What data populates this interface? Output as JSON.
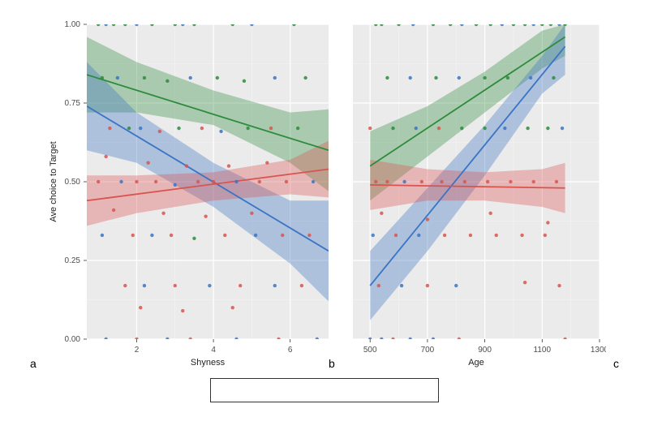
{
  "colors": {
    "series_a": "#2e8b3d",
    "series_b": "#3a74c4",
    "series_c": "#d9534f",
    "plot_bg": "#ebebeb",
    "grid": "#ffffff",
    "grid_minor": "#f5f5f5"
  },
  "ylabel": "Ave choice to Target",
  "panels": {
    "left": {
      "label": "a",
      "xlabel": "Shyness",
      "xlim": [
        0.7,
        7
      ],
      "ylim": [
        0,
        1
      ],
      "xticks": [
        2,
        4,
        6
      ],
      "yticks": [
        0.0,
        0.25,
        0.5,
        0.75,
        1.0
      ],
      "series": [
        {
          "color_key": "series_a",
          "line": [
            [
              0.7,
              0.84
            ],
            [
              7,
              0.6
            ]
          ],
          "ribbon_upper": [
            [
              0.7,
              0.96
            ],
            [
              2,
              0.88
            ],
            [
              4,
              0.79
            ],
            [
              6,
              0.72
            ],
            [
              7,
              0.73
            ]
          ],
          "ribbon_lower": [
            [
              0.7,
              0.72
            ],
            [
              2,
              0.72
            ],
            [
              4,
              0.68
            ],
            [
              6,
              0.56
            ],
            [
              7,
              0.47
            ]
          ]
        },
        {
          "color_key": "series_b",
          "line": [
            [
              0.7,
              0.74
            ],
            [
              7,
              0.28
            ]
          ],
          "ribbon_upper": [
            [
              0.7,
              0.88
            ],
            [
              2,
              0.72
            ],
            [
              4,
              0.56
            ],
            [
              6,
              0.44
            ],
            [
              7,
              0.44
            ]
          ],
          "ribbon_lower": [
            [
              0.7,
              0.6
            ],
            [
              2,
              0.56
            ],
            [
              4,
              0.42
            ],
            [
              6,
              0.24
            ],
            [
              7,
              0.12
            ]
          ]
        },
        {
          "color_key": "series_c",
          "line": [
            [
              0.7,
              0.44
            ],
            [
              7,
              0.54
            ]
          ],
          "ribbon_upper": [
            [
              0.7,
              0.52
            ],
            [
              2,
              0.52
            ],
            [
              4,
              0.53
            ],
            [
              6,
              0.57
            ],
            [
              7,
              0.63
            ]
          ],
          "ribbon_lower": [
            [
              0.7,
              0.36
            ],
            [
              2,
              0.4
            ],
            [
              4,
              0.44
            ],
            [
              6,
              0.46
            ],
            [
              7,
              0.45
            ]
          ]
        }
      ],
      "points": [
        {
          "x": 1.0,
          "y": 1.0,
          "c": "series_a"
        },
        {
          "x": 1.2,
          "y": 1.0,
          "c": "series_b"
        },
        {
          "x": 1.4,
          "y": 1.0,
          "c": "series_a"
        },
        {
          "x": 1.7,
          "y": 1.0,
          "c": "series_a"
        },
        {
          "x": 2.0,
          "y": 1.0,
          "c": "series_b"
        },
        {
          "x": 2.4,
          "y": 1.0,
          "c": "series_a"
        },
        {
          "x": 3.0,
          "y": 1.0,
          "c": "series_a"
        },
        {
          "x": 3.2,
          "y": 1.0,
          "c": "series_b"
        },
        {
          "x": 3.5,
          "y": 1.0,
          "c": "series_a"
        },
        {
          "x": 4.5,
          "y": 1.0,
          "c": "series_a"
        },
        {
          "x": 5.0,
          "y": 1.0,
          "c": "series_b"
        },
        {
          "x": 6.1,
          "y": 1.0,
          "c": "series_a"
        },
        {
          "x": 1.1,
          "y": 0.83,
          "c": "series_a"
        },
        {
          "x": 1.5,
          "y": 0.83,
          "c": "series_b"
        },
        {
          "x": 2.2,
          "y": 0.83,
          "c": "series_a"
        },
        {
          "x": 2.8,
          "y": 0.82,
          "c": "series_a"
        },
        {
          "x": 3.4,
          "y": 0.83,
          "c": "series_b"
        },
        {
          "x": 4.1,
          "y": 0.83,
          "c": "series_a"
        },
        {
          "x": 4.8,
          "y": 0.82,
          "c": "series_a"
        },
        {
          "x": 5.6,
          "y": 0.83,
          "c": "series_b"
        },
        {
          "x": 6.4,
          "y": 0.83,
          "c": "series_a"
        },
        {
          "x": 1.3,
          "y": 0.67,
          "c": "series_c"
        },
        {
          "x": 1.8,
          "y": 0.67,
          "c": "series_a"
        },
        {
          "x": 2.1,
          "y": 0.67,
          "c": "series_b"
        },
        {
          "x": 2.6,
          "y": 0.66,
          "c": "series_c"
        },
        {
          "x": 3.1,
          "y": 0.67,
          "c": "series_a"
        },
        {
          "x": 3.7,
          "y": 0.67,
          "c": "series_c"
        },
        {
          "x": 4.2,
          "y": 0.66,
          "c": "series_b"
        },
        {
          "x": 4.9,
          "y": 0.67,
          "c": "series_a"
        },
        {
          "x": 5.5,
          "y": 0.67,
          "c": "series_c"
        },
        {
          "x": 6.2,
          "y": 0.67,
          "c": "series_a"
        },
        {
          "x": 1.2,
          "y": 0.58,
          "c": "series_c"
        },
        {
          "x": 2.3,
          "y": 0.56,
          "c": "series_c"
        },
        {
          "x": 3.3,
          "y": 0.55,
          "c": "series_c"
        },
        {
          "x": 4.4,
          "y": 0.55,
          "c": "series_c"
        },
        {
          "x": 5.4,
          "y": 0.56,
          "c": "series_c"
        },
        {
          "x": 1.0,
          "y": 0.5,
          "c": "series_c"
        },
        {
          "x": 1.6,
          "y": 0.5,
          "c": "series_b"
        },
        {
          "x": 2.0,
          "y": 0.5,
          "c": "series_c"
        },
        {
          "x": 2.5,
          "y": 0.5,
          "c": "series_c"
        },
        {
          "x": 3.0,
          "y": 0.49,
          "c": "series_b"
        },
        {
          "x": 3.6,
          "y": 0.5,
          "c": "series_c"
        },
        {
          "x": 4.0,
          "y": 0.5,
          "c": "series_c"
        },
        {
          "x": 4.6,
          "y": 0.5,
          "c": "series_b"
        },
        {
          "x": 5.2,
          "y": 0.5,
          "c": "series_c"
        },
        {
          "x": 5.9,
          "y": 0.5,
          "c": "series_c"
        },
        {
          "x": 6.6,
          "y": 0.5,
          "c": "series_b"
        },
        {
          "x": 1.4,
          "y": 0.41,
          "c": "series_c"
        },
        {
          "x": 2.7,
          "y": 0.4,
          "c": "series_c"
        },
        {
          "x": 3.8,
          "y": 0.39,
          "c": "series_c"
        },
        {
          "x": 5.0,
          "y": 0.4,
          "c": "series_c"
        },
        {
          "x": 1.1,
          "y": 0.33,
          "c": "series_b"
        },
        {
          "x": 1.9,
          "y": 0.33,
          "c": "series_c"
        },
        {
          "x": 2.4,
          "y": 0.33,
          "c": "series_b"
        },
        {
          "x": 2.9,
          "y": 0.33,
          "c": "series_c"
        },
        {
          "x": 3.5,
          "y": 0.32,
          "c": "series_a"
        },
        {
          "x": 4.3,
          "y": 0.33,
          "c": "series_c"
        },
        {
          "x": 5.1,
          "y": 0.33,
          "c": "series_b"
        },
        {
          "x": 5.8,
          "y": 0.33,
          "c": "series_c"
        },
        {
          "x": 6.5,
          "y": 0.33,
          "c": "series_c"
        },
        {
          "x": 1.7,
          "y": 0.17,
          "c": "series_c"
        },
        {
          "x": 2.2,
          "y": 0.17,
          "c": "series_b"
        },
        {
          "x": 3.0,
          "y": 0.17,
          "c": "series_c"
        },
        {
          "x": 3.9,
          "y": 0.17,
          "c": "series_b"
        },
        {
          "x": 4.7,
          "y": 0.17,
          "c": "series_c"
        },
        {
          "x": 5.6,
          "y": 0.17,
          "c": "series_b"
        },
        {
          "x": 6.3,
          "y": 0.17,
          "c": "series_c"
        },
        {
          "x": 2.1,
          "y": 0.1,
          "c": "series_c"
        },
        {
          "x": 3.2,
          "y": 0.09,
          "c": "series_c"
        },
        {
          "x": 4.5,
          "y": 0.1,
          "c": "series_c"
        },
        {
          "x": 1.2,
          "y": 0.0,
          "c": "series_b"
        },
        {
          "x": 2.0,
          "y": 0.0,
          "c": "series_c"
        },
        {
          "x": 2.8,
          "y": 0.0,
          "c": "series_b"
        },
        {
          "x": 3.4,
          "y": 0.0,
          "c": "series_c"
        },
        {
          "x": 4.6,
          "y": 0.0,
          "c": "series_b"
        },
        {
          "x": 5.7,
          "y": 0.0,
          "c": "series_c"
        },
        {
          "x": 6.7,
          "y": 0.0,
          "c": "series_b"
        }
      ]
    },
    "right": {
      "label": "b",
      "label_right": "c",
      "xlabel": "Age",
      "xlim": [
        440,
        1300
      ],
      "ylim": [
        0,
        1
      ],
      "xticks": [
        500,
        700,
        900,
        1100,
        1300
      ],
      "yticks": [
        0.0,
        0.25,
        0.5,
        0.75,
        1.0
      ],
      "series": [
        {
          "color_key": "series_a",
          "line": [
            [
              500,
              0.55
            ],
            [
              1180,
              0.96
            ]
          ],
          "ribbon_upper": [
            [
              500,
              0.66
            ],
            [
              700,
              0.74
            ],
            [
              900,
              0.85
            ],
            [
              1100,
              0.98
            ],
            [
              1180,
              1.0
            ]
          ],
          "ribbon_lower": [
            [
              500,
              0.44
            ],
            [
              700,
              0.58
            ],
            [
              900,
              0.72
            ],
            [
              1100,
              0.86
            ],
            [
              1180,
              0.9
            ]
          ]
        },
        {
          "color_key": "series_b",
          "line": [
            [
              500,
              0.17
            ],
            [
              1180,
              0.93
            ]
          ],
          "ribbon_upper": [
            [
              500,
              0.28
            ],
            [
              700,
              0.48
            ],
            [
              900,
              0.68
            ],
            [
              1100,
              0.9
            ],
            [
              1180,
              1.0
            ]
          ],
          "ribbon_lower": [
            [
              500,
              0.06
            ],
            [
              700,
              0.28
            ],
            [
              900,
              0.52
            ],
            [
              1100,
              0.78
            ],
            [
              1180,
              0.84
            ]
          ]
        },
        {
          "color_key": "series_c",
          "line": [
            [
              500,
              0.49
            ],
            [
              1180,
              0.48
            ]
          ],
          "ribbon_upper": [
            [
              500,
              0.57
            ],
            [
              700,
              0.54
            ],
            [
              900,
              0.53
            ],
            [
              1100,
              0.54
            ],
            [
              1180,
              0.56
            ]
          ],
          "ribbon_lower": [
            [
              500,
              0.41
            ],
            [
              700,
              0.44
            ],
            [
              900,
              0.44
            ],
            [
              1100,
              0.42
            ],
            [
              1180,
              0.4
            ]
          ]
        }
      ],
      "points": [
        {
          "x": 520,
          "y": 1.0,
          "c": "series_a"
        },
        {
          "x": 540,
          "y": 1.0,
          "c": "series_a"
        },
        {
          "x": 600,
          "y": 1.0,
          "c": "series_a"
        },
        {
          "x": 650,
          "y": 1.0,
          "c": "series_b"
        },
        {
          "x": 720,
          "y": 1.0,
          "c": "series_a"
        },
        {
          "x": 780,
          "y": 1.0,
          "c": "series_a"
        },
        {
          "x": 820,
          "y": 1.0,
          "c": "series_b"
        },
        {
          "x": 870,
          "y": 1.0,
          "c": "series_a"
        },
        {
          "x": 920,
          "y": 1.0,
          "c": "series_a"
        },
        {
          "x": 960,
          "y": 1.0,
          "c": "series_b"
        },
        {
          "x": 1000,
          "y": 1.0,
          "c": "series_a"
        },
        {
          "x": 1040,
          "y": 1.0,
          "c": "series_a"
        },
        {
          "x": 1070,
          "y": 1.0,
          "c": "series_b"
        },
        {
          "x": 1100,
          "y": 1.0,
          "c": "series_a"
        },
        {
          "x": 1130,
          "y": 1.0,
          "c": "series_a"
        },
        {
          "x": 1160,
          "y": 1.0,
          "c": "series_b"
        },
        {
          "x": 1180,
          "y": 1.0,
          "c": "series_a"
        },
        {
          "x": 560,
          "y": 0.83,
          "c": "series_a"
        },
        {
          "x": 640,
          "y": 0.83,
          "c": "series_b"
        },
        {
          "x": 730,
          "y": 0.83,
          "c": "series_a"
        },
        {
          "x": 810,
          "y": 0.83,
          "c": "series_b"
        },
        {
          "x": 900,
          "y": 0.83,
          "c": "series_a"
        },
        {
          "x": 980,
          "y": 0.83,
          "c": "series_a"
        },
        {
          "x": 1060,
          "y": 0.83,
          "c": "series_b"
        },
        {
          "x": 1140,
          "y": 0.83,
          "c": "series_a"
        },
        {
          "x": 500,
          "y": 0.67,
          "c": "series_c"
        },
        {
          "x": 580,
          "y": 0.67,
          "c": "series_a"
        },
        {
          "x": 660,
          "y": 0.67,
          "c": "series_b"
        },
        {
          "x": 740,
          "y": 0.67,
          "c": "series_c"
        },
        {
          "x": 820,
          "y": 0.67,
          "c": "series_a"
        },
        {
          "x": 900,
          "y": 0.67,
          "c": "series_a"
        },
        {
          "x": 970,
          "y": 0.67,
          "c": "series_b"
        },
        {
          "x": 1050,
          "y": 0.67,
          "c": "series_a"
        },
        {
          "x": 1120,
          "y": 0.67,
          "c": "series_a"
        },
        {
          "x": 1170,
          "y": 0.67,
          "c": "series_b"
        },
        {
          "x": 520,
          "y": 0.5,
          "c": "series_c"
        },
        {
          "x": 560,
          "y": 0.5,
          "c": "series_c"
        },
        {
          "x": 620,
          "y": 0.5,
          "c": "series_b"
        },
        {
          "x": 680,
          "y": 0.5,
          "c": "series_c"
        },
        {
          "x": 750,
          "y": 0.5,
          "c": "series_c"
        },
        {
          "x": 830,
          "y": 0.5,
          "c": "series_c"
        },
        {
          "x": 910,
          "y": 0.5,
          "c": "series_c"
        },
        {
          "x": 990,
          "y": 0.5,
          "c": "series_c"
        },
        {
          "x": 1070,
          "y": 0.5,
          "c": "series_c"
        },
        {
          "x": 1150,
          "y": 0.5,
          "c": "series_c"
        },
        {
          "x": 540,
          "y": 0.4,
          "c": "series_c"
        },
        {
          "x": 700,
          "y": 0.38,
          "c": "series_c"
        },
        {
          "x": 920,
          "y": 0.4,
          "c": "series_c"
        },
        {
          "x": 1120,
          "y": 0.37,
          "c": "series_c"
        },
        {
          "x": 510,
          "y": 0.33,
          "c": "series_b"
        },
        {
          "x": 590,
          "y": 0.33,
          "c": "series_c"
        },
        {
          "x": 670,
          "y": 0.33,
          "c": "series_b"
        },
        {
          "x": 760,
          "y": 0.33,
          "c": "series_c"
        },
        {
          "x": 850,
          "y": 0.33,
          "c": "series_c"
        },
        {
          "x": 940,
          "y": 0.33,
          "c": "series_c"
        },
        {
          "x": 1030,
          "y": 0.33,
          "c": "series_c"
        },
        {
          "x": 1110,
          "y": 0.33,
          "c": "series_c"
        },
        {
          "x": 530,
          "y": 0.17,
          "c": "series_c"
        },
        {
          "x": 610,
          "y": 0.17,
          "c": "series_b"
        },
        {
          "x": 700,
          "y": 0.17,
          "c": "series_c"
        },
        {
          "x": 800,
          "y": 0.17,
          "c": "series_b"
        },
        {
          "x": 1040,
          "y": 0.18,
          "c": "series_c"
        },
        {
          "x": 1160,
          "y": 0.17,
          "c": "series_c"
        },
        {
          "x": 500,
          "y": 0.0,
          "c": "series_b"
        },
        {
          "x": 540,
          "y": 0.0,
          "c": "series_b"
        },
        {
          "x": 580,
          "y": 0.0,
          "c": "series_c"
        },
        {
          "x": 640,
          "y": 0.0,
          "c": "series_b"
        },
        {
          "x": 720,
          "y": 0.0,
          "c": "series_b"
        },
        {
          "x": 810,
          "y": 0.0,
          "c": "series_c"
        },
        {
          "x": 1180,
          "y": 0.0,
          "c": "series_c"
        }
      ]
    }
  }
}
